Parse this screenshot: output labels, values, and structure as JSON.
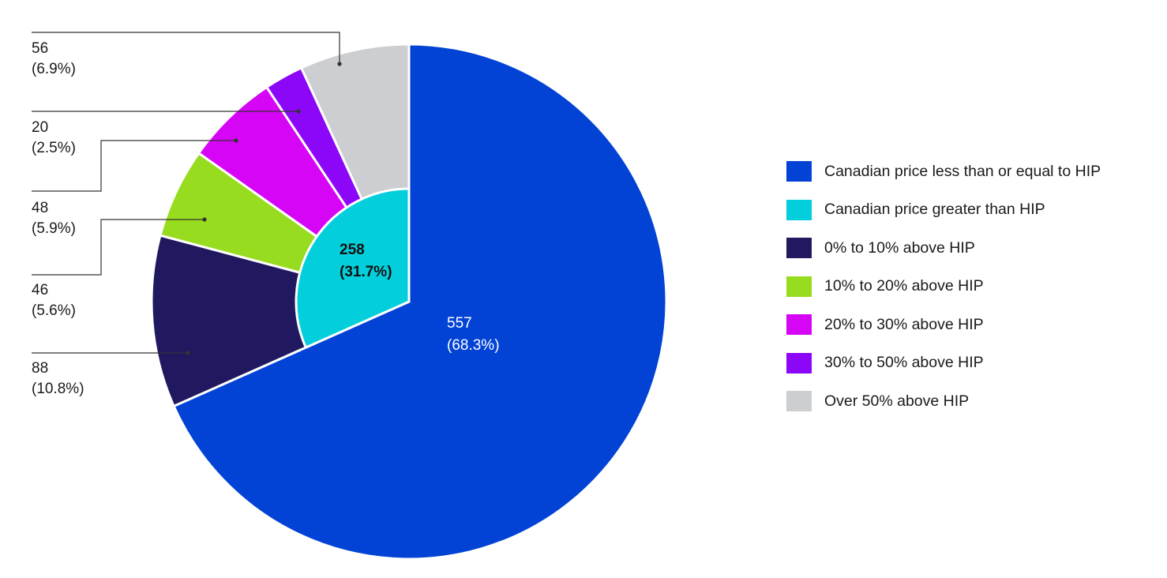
{
  "chart_data": {
    "type": "pie",
    "title": "",
    "outer": {
      "slices": [
        {
          "key": "le_hip",
          "name": "Canadian price less than or equal to HIP",
          "value": 557,
          "percent": "68.3%",
          "color": "#0243D6"
        },
        {
          "key": "p0_10",
          "name": "0% to 10% above HIP",
          "value": 88,
          "percent": "10.8%",
          "color": "#201960"
        },
        {
          "key": "p10_20",
          "name": "10% to 20% above HIP",
          "value": 46,
          "percent": "5.6%",
          "color": "#97DC1E"
        },
        {
          "key": "p20_30",
          "name": "20% to 30% above HIP",
          "value": 48,
          "percent": "5.9%",
          "color": "#D605F5"
        },
        {
          "key": "p30_50",
          "name": "30% to 50% above HIP",
          "value": 20,
          "percent": "2.5%",
          "color": "#8C07F8"
        },
        {
          "key": "p50",
          "name": "Over 50% above HIP",
          "value": 56,
          "percent": "6.9%",
          "color": "#CDCED1"
        }
      ]
    },
    "inner": {
      "slices": [
        {
          "key": "gt_hip",
          "name": "Canadian price greater than HIP",
          "value": 258,
          "percent": "31.7%",
          "color": "#02CFDB"
        }
      ]
    }
  },
  "labels": {
    "le_hip": {
      "value": "557",
      "percent": "(68.3%)"
    },
    "gt_hip": {
      "value": "258",
      "percent": "(31.7%)"
    },
    "p0_10": {
      "value": "88",
      "percent": "(10.8%)"
    },
    "p10_20": {
      "value": "46",
      "percent": "(5.6%)"
    },
    "p20_30": {
      "value": "48",
      "percent": "(5.9%)"
    },
    "p30_50": {
      "value": "20",
      "percent": "(2.5%)"
    },
    "p50": {
      "value": "56",
      "percent": "(6.9%)"
    }
  },
  "legend": [
    {
      "label": "Canadian price less than or equal to HIP",
      "color": "#0243D6"
    },
    {
      "label": "Canadian price greater than HIP",
      "color": "#02CFDB"
    },
    {
      "label": "0% to 10% above HIP",
      "color": "#201960"
    },
    {
      "label": "10% to 20% above HIP",
      "color": "#97DC1E"
    },
    {
      "label": "20% to 30% above HIP",
      "color": "#D605F5"
    },
    {
      "label": "30% to 50% above HIP",
      "color": "#8C07F8"
    },
    {
      "label": "Over 50% above HIP",
      "color": "#CDCED1"
    }
  ]
}
